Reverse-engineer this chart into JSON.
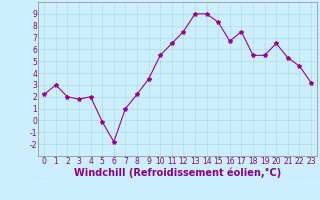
{
  "x": [
    0,
    1,
    2,
    3,
    4,
    5,
    6,
    7,
    8,
    9,
    10,
    11,
    12,
    13,
    14,
    15,
    16,
    17,
    18,
    19,
    20,
    21,
    22,
    23
  ],
  "y": [
    2.2,
    3.0,
    2.0,
    1.8,
    2.0,
    -0.1,
    -1.8,
    1.0,
    2.2,
    3.5,
    5.5,
    6.5,
    7.5,
    9.0,
    9.0,
    8.3,
    6.7,
    7.5,
    5.5,
    5.5,
    6.5,
    5.3,
    4.6,
    3.2
  ],
  "line_color": "#990099",
  "marker": "*",
  "marker_size": 3,
  "bg_color": "#cceeff",
  "grid_color": "#aadddd",
  "xlabel": "Windchill (Refroidissement éolien,°C)",
  "ylim": [
    -3,
    10
  ],
  "xlim": [
    -0.5,
    23.5
  ],
  "yticks": [
    -2,
    -1,
    0,
    1,
    2,
    3,
    4,
    5,
    6,
    7,
    8,
    9
  ],
  "xticks": [
    0,
    1,
    2,
    3,
    4,
    5,
    6,
    7,
    8,
    9,
    10,
    11,
    12,
    13,
    14,
    15,
    16,
    17,
    18,
    19,
    20,
    21,
    22,
    23
  ],
  "tick_fontsize": 5.5,
  "xlabel_fontsize": 7,
  "axis_color": "#880088",
  "spine_color": "#888888"
}
